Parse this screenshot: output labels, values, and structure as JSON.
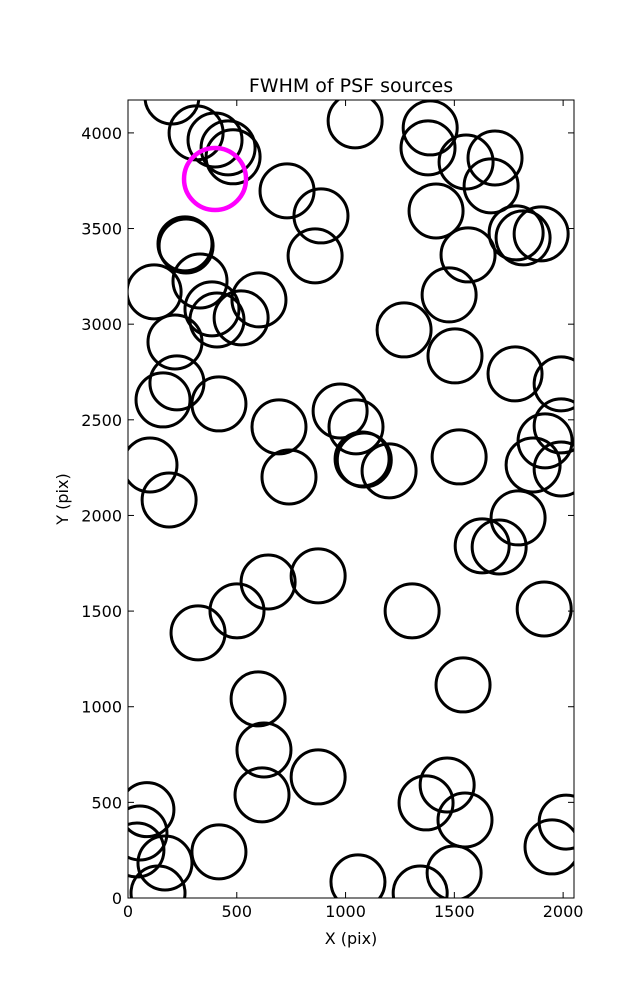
{
  "chart_data": {
    "type": "scatter",
    "title": "FWHM of PSF sources",
    "xlabel": "X (pix)",
    "ylabel": "Y (pix)",
    "xlim": [
      0,
      2050
    ],
    "ylim": [
      0,
      4172
    ],
    "xticks": [
      0,
      500,
      1000,
      1500,
      2000
    ],
    "yticks": [
      0,
      500,
      1000,
      1500,
      2000,
      2500,
      3000,
      3500,
      4000
    ],
    "series": [
      {
        "color": "#000000",
        "x": [
          202,
          313,
          400,
          460,
          483,
          1044,
          1389,
          1379,
          1554,
          1687,
          1669,
          731,
          887,
          1416,
          267,
          262,
          1563,
          860,
          1784,
          1816,
          1899,
          120,
          331,
          386,
          409,
          520,
          602,
          1476,
          1269,
          216,
          225,
          161,
          418,
          1503,
          1779,
          1991,
          694,
          975,
          1048,
          1076,
          1086,
          1200,
          101,
          189,
          740,
          1522,
          1991,
          1917,
          1862,
          1991,
          1793,
          1628,
          1706,
          644,
          874,
          501,
          322,
          1306,
          1913,
          1540,
          598,
          625,
          616,
          874,
          1467,
          1370,
          1549,
          418,
          170,
          87,
          55,
          41,
          138,
          1057,
          1343,
          1499,
          1949,
          2014
        ],
        "values": [
          4188,
          4000,
          3963,
          3922,
          3875,
          4063,
          4026,
          3922,
          3848,
          3869,
          3723,
          3697,
          3566,
          3592,
          3409,
          3420,
          3362,
          3357,
          3477,
          3451,
          3472,
          3169,
          3226,
          3080,
          3022,
          3033,
          3127,
          3153,
          2970,
          2907,
          2693,
          2604,
          2583,
          2834,
          2740,
          2688,
          2463,
          2546,
          2463,
          2295,
          2290,
          2233,
          2264,
          2081,
          2201,
          2306,
          2468,
          2390,
          2264,
          2243,
          1987,
          1841,
          1835,
          1652,
          1684,
          1501,
          1386,
          1501,
          1511,
          1114,
          1041,
          774,
          539,
          633,
          591,
          497,
          408,
          241,
          183,
          462,
          340,
          251,
          26,
          84,
          26,
          131,
          267,
          397
        ]
      },
      {
        "color": "#ff00ff",
        "x": [
          400
        ],
        "values": [
          3759
        ]
      }
    ]
  }
}
